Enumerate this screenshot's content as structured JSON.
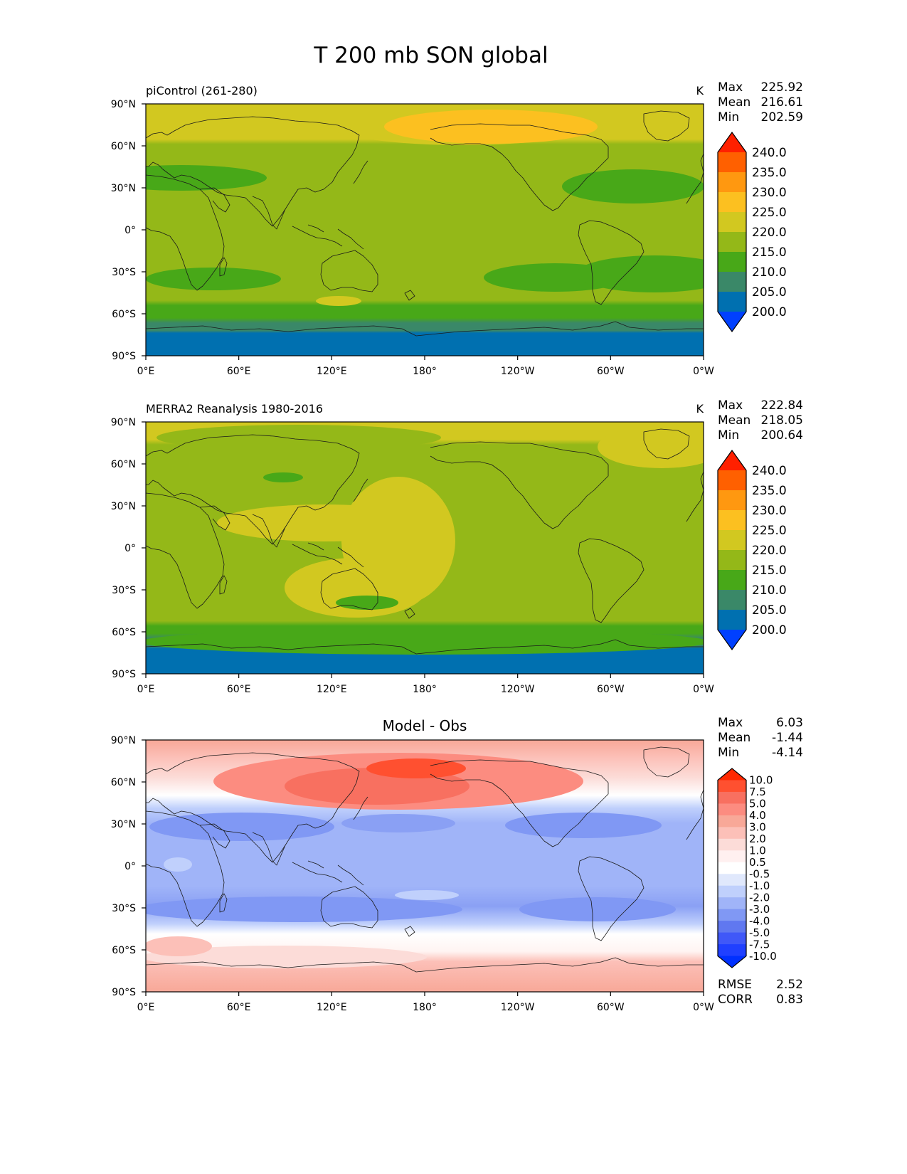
{
  "figure_title": "T 200 mb SON global",
  "lon_ticks": [
    "0°E",
    "60°E",
    "120°E",
    "180°",
    "120°W",
    "60°W",
    "0°W"
  ],
  "lat_ticks": [
    "90°N",
    "60°N",
    "30°N",
    "0°",
    "30°S",
    "60°S",
    "90°S"
  ],
  "panels": [
    {
      "id": "model",
      "left_title": "piControl (261-280)",
      "center_title": "",
      "units": "K",
      "stats": [
        {
          "label": "Max",
          "value": "225.92"
        },
        {
          "label": "Mean",
          "value": "216.61"
        },
        {
          "label": "Min",
          "value": "202.59"
        }
      ],
      "colorbar": {
        "labels": [
          "240.0",
          "235.0",
          "230.0",
          "225.0",
          "220.0",
          "215.0",
          "210.0",
          "205.0",
          "200.0"
        ],
        "colors": [
          "#ff2000",
          "#ff6000",
          "#ff9810",
          "#fcc020",
          "#d2c820",
          "#94b818",
          "#48a818",
          "#3a8868",
          "#0070b0",
          "#0040ff"
        ]
      },
      "extra_stats": []
    },
    {
      "id": "obs",
      "left_title": "MERRA2 Reanalysis 1980-2016",
      "center_title": "",
      "units": "K",
      "stats": [
        {
          "label": "Max",
          "value": "222.84"
        },
        {
          "label": "Mean",
          "value": "218.05"
        },
        {
          "label": "Min",
          "value": "200.64"
        }
      ],
      "colorbar": {
        "labels": [
          "240.0",
          "235.0",
          "230.0",
          "225.0",
          "220.0",
          "215.0",
          "210.0",
          "205.0",
          "200.0"
        ],
        "colors": [
          "#ff2000",
          "#ff6000",
          "#ff9810",
          "#fcc020",
          "#d2c820",
          "#94b818",
          "#48a818",
          "#3a8868",
          "#0070b0",
          "#0040ff"
        ]
      },
      "extra_stats": []
    },
    {
      "id": "diff",
      "left_title": "",
      "center_title": "Model - Obs",
      "units": "",
      "stats": [
        {
          "label": "Max",
          "value": "6.03"
        },
        {
          "label": "Mean",
          "value": "-1.44"
        },
        {
          "label": "Min",
          "value": "-4.14"
        }
      ],
      "colorbar": {
        "labels": [
          "10.0",
          "7.5",
          "5.0",
          "4.0",
          "3.0",
          "2.0",
          "1.0",
          "0.5",
          "-0.5",
          "-1.0",
          "-2.0",
          "-3.0",
          "-4.0",
          "-5.0",
          "-7.5",
          "-10.0"
        ],
        "colors": [
          "#ff2800",
          "#ff5030",
          "#f87060",
          "#fc8c80",
          "#f8a898",
          "#fcc0b8",
          "#fcdcd8",
          "#fff0f0",
          "#ffffff",
          "#e0e8fc",
          "#c0d0fc",
          "#a0b4f8",
          "#8098f4",
          "#6078f0",
          "#4058f8",
          "#2040ff",
          "#0030ff"
        ]
      },
      "extra_stats": [
        {
          "label": "RMSE",
          "value": "2.52"
        },
        {
          "label": "CORR",
          "value": "0.83"
        }
      ]
    }
  ],
  "chart_data": [
    {
      "type": "heatmap",
      "title": "piControl (261-280)",
      "units": "K",
      "xlabel": "",
      "ylabel": "",
      "x_ticks": [
        "0°E",
        "60°E",
        "120°E",
        "180°",
        "120°W",
        "60°W",
        "0°W"
      ],
      "y_ticks": [
        "90°N",
        "60°N",
        "30°N",
        "0°",
        "30°S",
        "60°S",
        "90°S"
      ],
      "xlim": [
        0,
        360
      ],
      "ylim": [
        -90,
        90
      ],
      "levels": [
        200,
        205,
        210,
        215,
        220,
        225,
        230,
        235,
        240
      ],
      "max": 225.92,
      "mean": 216.61,
      "min": 202.59
    },
    {
      "type": "heatmap",
      "title": "MERRA2 Reanalysis 1980-2016",
      "units": "K",
      "xlabel": "",
      "ylabel": "",
      "x_ticks": [
        "0°E",
        "60°E",
        "120°E",
        "180°",
        "120°W",
        "60°W",
        "0°W"
      ],
      "y_ticks": [
        "90°N",
        "60°N",
        "30°N",
        "0°",
        "30°S",
        "60°S",
        "90°S"
      ],
      "xlim": [
        0,
        360
      ],
      "ylim": [
        -90,
        90
      ],
      "levels": [
        200,
        205,
        210,
        215,
        220,
        225,
        230,
        235,
        240
      ],
      "max": 222.84,
      "mean": 218.05,
      "min": 200.64
    },
    {
      "type": "heatmap",
      "title": "Model - Obs",
      "xlabel": "",
      "ylabel": "",
      "x_ticks": [
        "0°E",
        "60°E",
        "120°E",
        "180°",
        "120°W",
        "60°W",
        "0°W"
      ],
      "y_ticks": [
        "90°N",
        "60°N",
        "30°N",
        "0°",
        "30°S",
        "60°S",
        "90°S"
      ],
      "xlim": [
        0,
        360
      ],
      "ylim": [
        -90,
        90
      ],
      "levels": [
        -10,
        -7.5,
        -5,
        -4,
        -3,
        -2,
        -1,
        -0.5,
        0.5,
        1,
        2,
        3,
        4,
        5,
        7.5,
        10
      ],
      "max": 6.03,
      "mean": -1.44,
      "min": -4.14,
      "rmse": 2.52,
      "corr": 0.83
    }
  ]
}
